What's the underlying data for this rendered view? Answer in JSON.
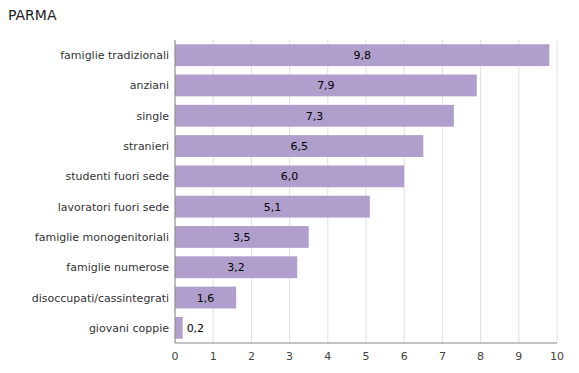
{
  "chart_data": {
    "type": "bar",
    "orientation": "horizontal",
    "title": "PARMA",
    "categories": [
      "giovani coppie",
      "disoccupati/cassintegrati",
      "famiglie numerose",
      "famiglie monogenitoriali",
      "lavoratori fuori sede",
      "studenti fuori sede",
      "stranieri",
      "single",
      "anziani",
      "famiglie tradizionali"
    ],
    "values": [
      0.2,
      1.6,
      3.2,
      3.5,
      5.1,
      6.0,
      6.5,
      7.3,
      7.9,
      9.8
    ],
    "value_labels": [
      "0,2",
      "1,6",
      "3,2",
      "3,5",
      "5,1",
      "6,0",
      "6,5",
      "7,3",
      "7,9",
      "9,8"
    ],
    "data_labels": true,
    "color": "#b09fcc",
    "xlim": [
      0,
      10
    ],
    "xticks": [
      0,
      1,
      2,
      3,
      4,
      5,
      6,
      7,
      8,
      9,
      10
    ],
    "grid": true
  }
}
